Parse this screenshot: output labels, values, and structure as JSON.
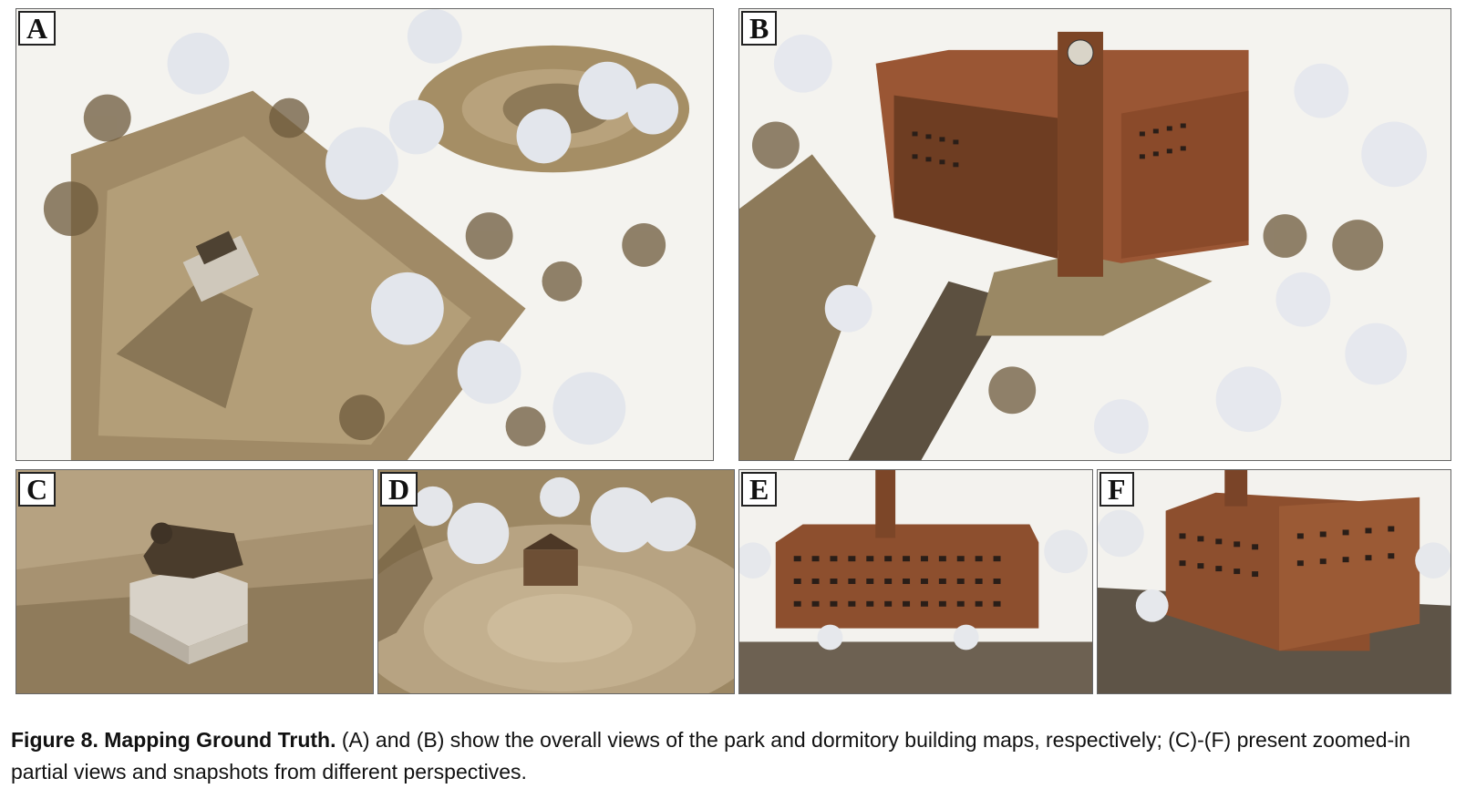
{
  "panels": {
    "a": {
      "label": "A"
    },
    "b": {
      "label": "B"
    },
    "c": {
      "label": "C"
    },
    "d": {
      "label": "D"
    },
    "e": {
      "label": "E"
    },
    "f": {
      "label": "F"
    }
  },
  "caption": {
    "lead": "Figure 8.  Mapping Ground Truth.",
    "text": " (A) and (B) show the overall views of the park and dormitory building maps, respectively; (C)-(F) present zoomed-in partial views and snapshots from different perspectives."
  },
  "colors": {
    "pavement": "#a8926c",
    "brick": "#8a4e2c",
    "snow": "#f2f2f0",
    "tree": "#6e5a3c"
  }
}
